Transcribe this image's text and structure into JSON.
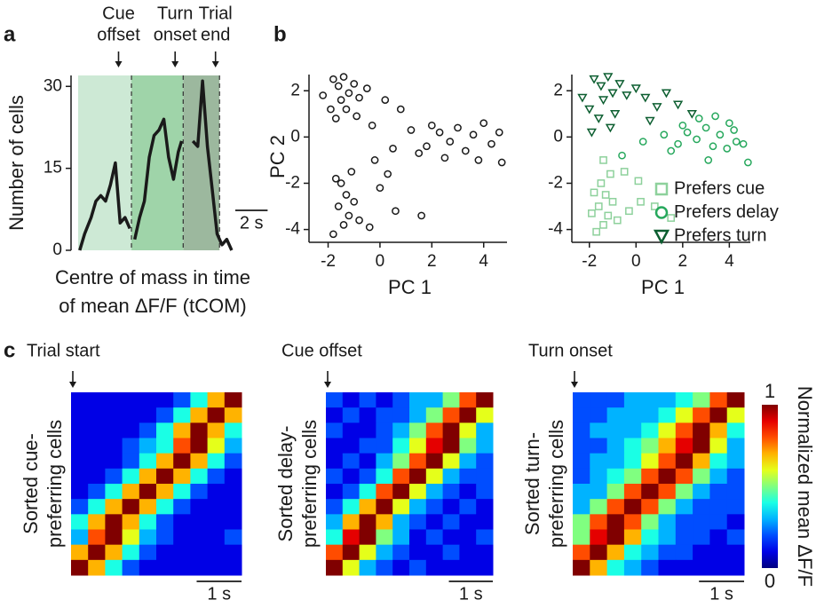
{
  "chart_data": [
    {
      "type": "line",
      "panel": "a",
      "y_label": "Number of cells",
      "x_label_lines": [
        "Centre of mass in time",
        "of mean ΔF/F (tCOM)"
      ],
      "xlim": [
        0,
        10
      ],
      "ylim": [
        0,
        32
      ],
      "yticks": [
        0,
        15,
        30
      ],
      "color": "#1a1a1a",
      "x": [
        0.1,
        0.4,
        0.8,
        1.1,
        1.4,
        1.7,
        2.0,
        2.3,
        2.6,
        2.9,
        3.2,
        null,
        3.5,
        3.8,
        4.1,
        4.4,
        4.7,
        5.0,
        5.3,
        5.6,
        5.9,
        6.2,
        6.4,
        null,
        7.1,
        7.4,
        7.7,
        8.0,
        8.3,
        8.6,
        8.9,
        9.2,
        9.5
      ],
      "values": [
        0,
        3,
        6,
        9,
        10,
        9,
        12,
        16,
        5,
        6,
        4,
        null,
        2,
        6,
        9,
        17,
        21,
        22,
        24,
        17,
        13,
        18,
        20,
        null,
        20,
        19,
        31,
        19,
        11,
        3,
        1,
        2,
        0
      ],
      "shaded_regions": [
        {
          "start": 0,
          "end": 3.3,
          "color": "#cde9d5"
        },
        {
          "start": 3.3,
          "end": 6.5,
          "color": "#9fd4a9"
        },
        {
          "start": 6.5,
          "end": 8.75,
          "color": "#9cb89e"
        }
      ],
      "annotations": [
        {
          "lines": [
            "Cue",
            "offset"
          ],
          "x": 2.5
        },
        {
          "lines": [
            "Turn",
            "onset"
          ],
          "x": 6
        },
        {
          "lines": [
            "Trial",
            "end"
          ],
          "x": 8.5
        }
      ],
      "scale_bar": {
        "label": "2 s",
        "length": 2
      }
    },
    {
      "type": "scatter",
      "panel": "b",
      "x_label": "PC 1",
      "y_label": "PC 2",
      "xlim": [
        -2.6,
        4.9
      ],
      "ylim": [
        -4.4,
        2.7
      ],
      "xticks": [
        -2,
        0,
        2,
        4
      ],
      "yticks": [
        -4,
        -2,
        0,
        2
      ],
      "series": [
        {
          "color": "#1a1a1a",
          "marker": "circle",
          "x": [
            -1.8,
            -1.6,
            -1.4,
            -1.2,
            -1.0,
            -1.5,
            -1.9,
            -0.8,
            -0.5,
            -1.3,
            -0.9,
            -2.2,
            0.2,
            0.8,
            -0.3,
            -1.7,
            1.8,
            2.3,
            2.7,
            3.0,
            3.3,
            3.6,
            4.0,
            4.3,
            4.6,
            2.0,
            1.5,
            3.8,
            4.7,
            2.5,
            1.2,
            0.5,
            -1.5,
            -1.3,
            -1.6,
            -1.2,
            -1.4,
            -1.8,
            -1.0,
            -0.8,
            -1.7,
            -1.1,
            0.0,
            -0.4,
            0.6,
            1.6,
            -0.2,
            0.3
          ],
          "y": [
            2.5,
            2.2,
            2.6,
            1.9,
            2.3,
            1.6,
            1.2,
            1.7,
            2.1,
            1.2,
            0.9,
            1.8,
            1.6,
            1.2,
            0.5,
            0.8,
            -0.4,
            0.2,
            -0.2,
            0.4,
            -0.6,
            0.1,
            0.6,
            -0.3,
            0.2,
            0.5,
            -0.7,
            -1.0,
            -1.1,
            -0.9,
            0.3,
            -0.5,
            -2.0,
            -2.5,
            -3.0,
            -3.4,
            -3.8,
            -4.2,
            -2.8,
            -3.6,
            -1.8,
            -1.5,
            -2.2,
            -3.9,
            -3.2,
            -3.4,
            -1.0,
            -1.6
          ]
        }
      ]
    },
    {
      "type": "scatter",
      "x_label": "PC 1",
      "xlim": [
        -2.6,
        4.9
      ],
      "ylim": [
        -4.4,
        2.7
      ],
      "xticks": [
        -2,
        0,
        2,
        4
      ],
      "yticks": [
        -4,
        -2,
        0,
        2
      ],
      "legend": "lower right",
      "series": [
        {
          "name": "Prefers cue",
          "color": "#8ed19c",
          "marker": "square",
          "x": [
            -1.5,
            -1.3,
            -1.6,
            -1.2,
            -1.4,
            -1.7,
            -1.0,
            -0.8,
            -1.8,
            -1.1,
            -0.5,
            -1.9,
            0.2,
            1.5,
            -0.3,
            0.8,
            -1.4,
            0.1
          ],
          "y": [
            -2.0,
            -2.5,
            -3.0,
            -3.4,
            -3.8,
            -4.1,
            -2.8,
            -3.6,
            -2.4,
            -1.6,
            -1.5,
            -3.3,
            -2.8,
            -3.5,
            -3.2,
            -3.0,
            -1.0,
            -1.9
          ]
        },
        {
          "name": "Prefers delay",
          "color": "#27a85d",
          "marker": "circle",
          "x": [
            1.8,
            2.2,
            2.6,
            3.0,
            3.3,
            3.6,
            4.0,
            4.3,
            4.6,
            2.0,
            1.5,
            3.1,
            4.8,
            2.7,
            1.2,
            3.9,
            0.3,
            3.4,
            -0.6,
            4.2
          ],
          "y": [
            -0.3,
            0.2,
            -0.1,
            0.4,
            -0.4,
            0.1,
            0.6,
            -0.2,
            -0.3,
            0.5,
            -0.6,
            -1.0,
            -1.1,
            0.8,
            0.1,
            -0.5,
            -0.2,
            0.9,
            -0.8,
            0.3
          ]
        },
        {
          "name": "Prefers turn",
          "color": "#0c5e30",
          "marker": "triangle",
          "x": [
            -1.8,
            -1.5,
            -1.2,
            -1.0,
            -0.7,
            -1.4,
            -2.0,
            -0.4,
            0.0,
            0.4,
            0.9,
            -1.6,
            -0.9,
            1.3,
            1.8,
            -2.3,
            -1.1,
            0.6,
            -1.9,
            2.4
          ],
          "y": [
            2.5,
            2.2,
            2.6,
            1.9,
            2.3,
            1.6,
            1.2,
            1.8,
            2.1,
            1.7,
            1.3,
            0.8,
            1.0,
            1.9,
            1.4,
            1.7,
            0.4,
            0.7,
            0.2,
            1.0
          ]
        }
      ]
    },
    {
      "type": "heatmap",
      "panel": "c",
      "title": "Trial start",
      "y_label_lines": [
        "Sorted cue-",
        "preferring cells"
      ],
      "colormap": "jet",
      "zlim": [
        0,
        1
      ],
      "xlim": [
        0,
        3.8
      ],
      "scale_bar": {
        "label": "1 s",
        "length": 1
      },
      "matrix": [
        [
          0.1,
          0.1,
          0.1,
          0.1,
          0.1,
          0.1,
          0.2,
          0.4,
          0.7,
          1
        ],
        [
          0.1,
          0.1,
          0.1,
          0.1,
          0.1,
          0.2,
          0.4,
          0.7,
          1,
          0.7
        ],
        [
          0.1,
          0.1,
          0.1,
          0.1,
          0.2,
          0.4,
          0.7,
          1,
          0.7,
          0.4
        ],
        [
          0.1,
          0.1,
          0.1,
          0.2,
          0.3,
          0.4,
          0.8,
          1,
          0.6,
          0.3
        ],
        [
          0.1,
          0.1,
          0.1,
          0.2,
          0.4,
          0.7,
          1,
          0.7,
          0.4,
          0.2
        ],
        [
          0.1,
          0.1,
          0.2,
          0.4,
          0.7,
          1,
          0.7,
          0.4,
          0.2,
          0.1
        ],
        [
          0.1,
          0.2,
          0.4,
          0.7,
          1,
          0.7,
          0.4,
          0.2,
          0.1,
          0.1
        ],
        [
          0.2,
          0.4,
          0.7,
          1,
          0.7,
          0.4,
          0.2,
          0.1,
          0.1,
          0.1
        ],
        [
          0.4,
          0.7,
          1,
          0.7,
          0.4,
          0.2,
          0.1,
          0.1,
          0.1,
          0.1
        ],
        [
          0.3,
          0.8,
          1,
          0.6,
          0.3,
          0.2,
          0.1,
          0.1,
          0.1,
          0.2
        ],
        [
          0.7,
          1,
          0.7,
          0.4,
          0.2,
          0.1,
          0.1,
          0.1,
          0.1,
          0.1
        ],
        [
          1,
          0.7,
          0.4,
          0.2,
          0.1,
          0.1,
          0.1,
          0.1,
          0.1,
          0.1
        ]
      ]
    },
    {
      "type": "heatmap",
      "title": "Cue offset",
      "y_label_lines": [
        "Sorted delay-",
        "preferring cells"
      ],
      "colormap": "jet",
      "zlim": [
        0,
        1
      ],
      "xlim": [
        0,
        3.8
      ],
      "scale_bar": {
        "label": "1 s",
        "length": 1
      },
      "matrix": [
        [
          0.2,
          0.1,
          0.2,
          0.1,
          0.2,
          0.3,
          0.3,
          0.5,
          0.8,
          1
        ],
        [
          0.1,
          0.2,
          0.1,
          0.2,
          0.2,
          0.3,
          0.5,
          0.8,
          1,
          0.6
        ],
        [
          0.2,
          0.1,
          0.1,
          0.2,
          0.3,
          0.5,
          0.8,
          1,
          0.6,
          0.3
        ],
        [
          0.1,
          0.1,
          0.2,
          0.2,
          0.4,
          0.6,
          0.9,
          1,
          0.5,
          0.3
        ],
        [
          0.1,
          0.2,
          0.1,
          0.3,
          0.5,
          0.8,
          1,
          0.6,
          0.3,
          0.2
        ],
        [
          0.2,
          0.1,
          0.2,
          0.4,
          0.8,
          1,
          0.6,
          0.3,
          0.2,
          0.2
        ],
        [
          0.1,
          0.2,
          0.4,
          0.8,
          1,
          0.6,
          0.3,
          0.2,
          0.1,
          0.2
        ],
        [
          0.2,
          0.4,
          0.7,
          1,
          0.6,
          0.3,
          0.2,
          0.1,
          0.2,
          0.1
        ],
        [
          0.3,
          0.7,
          1,
          0.7,
          0.3,
          0.2,
          0.1,
          0.2,
          0.1,
          0.1
        ],
        [
          0.4,
          0.9,
          1,
          0.5,
          0.3,
          0.1,
          0.2,
          0.1,
          0.1,
          0.2
        ],
        [
          0.8,
          1,
          0.6,
          0.3,
          0.2,
          0.1,
          0.1,
          0.2,
          0.1,
          0.1
        ],
        [
          1,
          0.6,
          0.3,
          0.2,
          0.1,
          0.2,
          0.1,
          0.1,
          0.1,
          0.1
        ]
      ]
    },
    {
      "type": "heatmap",
      "title": "Turn onset",
      "y_label_lines": [
        "Sorted turn-",
        "preferring cells"
      ],
      "colormap": "jet",
      "zlim": [
        0,
        1
      ],
      "xlim": [
        0,
        3.8
      ],
      "scale_bar": {
        "label": "1 s",
        "length": 1
      },
      "colorbar": {
        "label": "Normalized mean ΔF/F",
        "lim": [
          0,
          1
        ],
        "ticks": [
          0,
          1
        ]
      },
      "matrix": [
        [
          0.2,
          0.2,
          0.2,
          0.3,
          0.3,
          0.3,
          0.4,
          0.5,
          0.8,
          1
        ],
        [
          0.2,
          0.2,
          0.3,
          0.3,
          0.3,
          0.4,
          0.6,
          0.8,
          1,
          0.6
        ],
        [
          0.2,
          0.3,
          0.3,
          0.3,
          0.4,
          0.6,
          0.8,
          1,
          0.7,
          0.4
        ],
        [
          0.2,
          0.2,
          0.3,
          0.4,
          0.5,
          0.7,
          0.9,
          1,
          0.6,
          0.3
        ],
        [
          0.2,
          0.3,
          0.3,
          0.4,
          0.6,
          0.8,
          1,
          0.7,
          0.4,
          0.3
        ],
        [
          0.2,
          0.3,
          0.4,
          0.5,
          0.8,
          1,
          0.8,
          0.5,
          0.3,
          0.2
        ],
        [
          0.3,
          0.3,
          0.5,
          0.8,
          1,
          0.8,
          0.5,
          0.3,
          0.2,
          0.2
        ],
        [
          0.3,
          0.5,
          0.8,
          1,
          0.8,
          0.5,
          0.3,
          0.2,
          0.2,
          0.2
        ],
        [
          0.5,
          0.8,
          1,
          0.8,
          0.5,
          0.3,
          0.2,
          0.2,
          0.2,
          0.1
        ],
        [
          0.5,
          0.9,
          1,
          0.7,
          0.4,
          0.3,
          0.2,
          0.2,
          0.1,
          0.2
        ],
        [
          0.8,
          1,
          0.7,
          0.4,
          0.3,
          0.2,
          0.2,
          0.1,
          0.1,
          0.1
        ],
        [
          1,
          0.7,
          0.4,
          0.3,
          0.2,
          0.1,
          0.1,
          0.1,
          0.1,
          0.1
        ]
      ]
    }
  ]
}
